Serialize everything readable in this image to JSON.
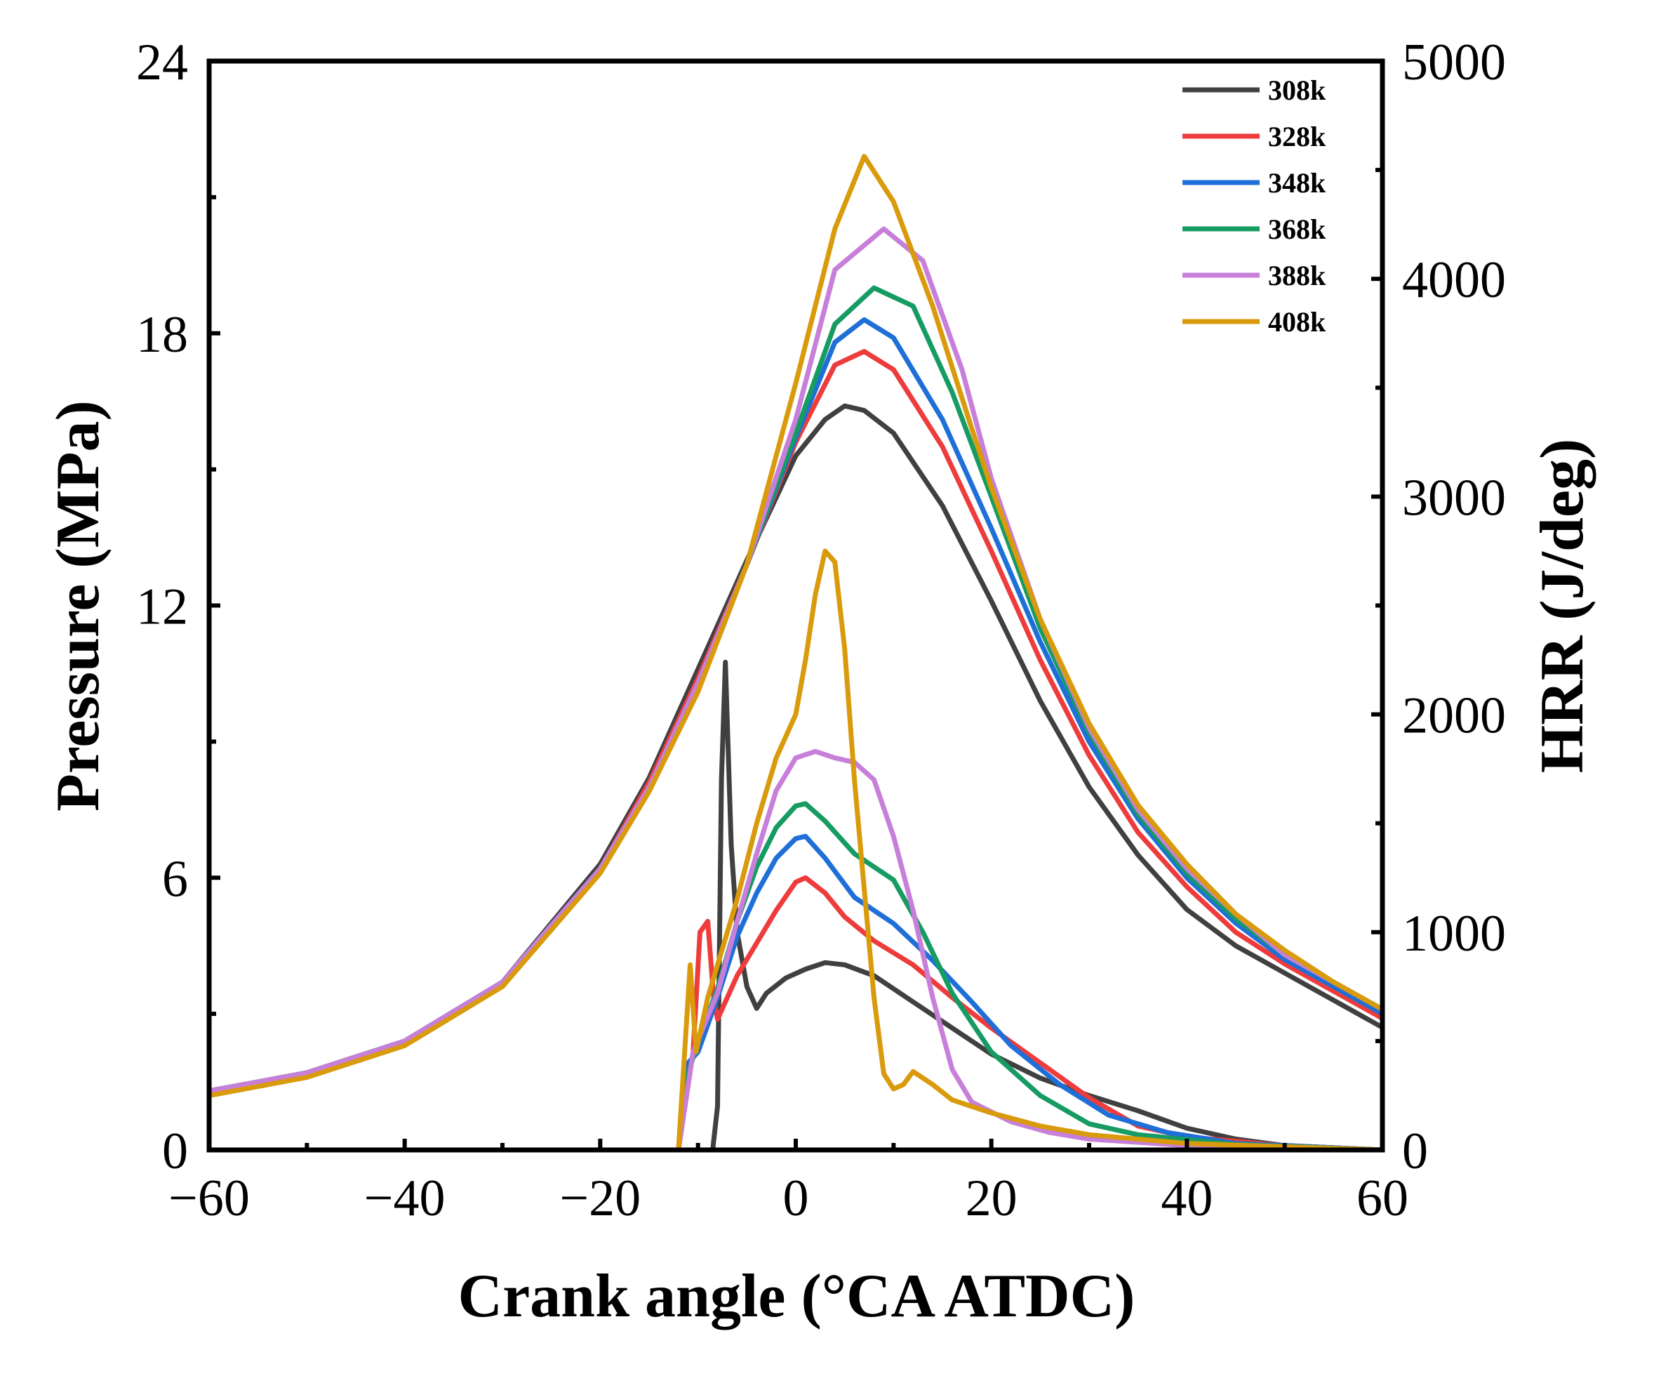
{
  "chart_data": {
    "type": "line",
    "title": "",
    "xlabel": "Crank angle (°CA ATDC)",
    "ylabel_left": "Pressure (MPa)",
    "ylabel_right": "HRR (J/deg)",
    "xlim": [
      -60,
      60
    ],
    "ylim_left": [
      0,
      24
    ],
    "ylim_right": [
      0,
      5000
    ],
    "x_ticks": [
      -60,
      -40,
      -20,
      0,
      20,
      40,
      60
    ],
    "x_tick_labels": [
      "−60",
      "−40",
      "−20",
      "0",
      "20",
      "40",
      "60"
    ],
    "y_left_ticks": [
      0,
      6,
      12,
      18,
      24
    ],
    "y_left_tick_labels": [
      "0",
      "6",
      "12",
      "18",
      "24"
    ],
    "y_right_ticks": [
      0,
      1000,
      2000,
      3000,
      4000,
      5000
    ],
    "y_right_tick_labels": [
      "0",
      "1000",
      "2000",
      "3000",
      "4000",
      "5000"
    ],
    "grid": false,
    "legend_position": "top-right",
    "series": [
      {
        "name": "308k",
        "color": "#404040",
        "pressure": [
          [
            -60,
            1.3
          ],
          [
            -50,
            1.7
          ],
          [
            -40,
            2.4
          ],
          [
            -30,
            3.7
          ],
          [
            -20,
            6.3
          ],
          [
            -15,
            8.2
          ],
          [
            -10,
            10.6
          ],
          [
            -5,
            13.0
          ],
          [
            0,
            15.3
          ],
          [
            3,
            16.1
          ],
          [
            5,
            16.4
          ],
          [
            7,
            16.3
          ],
          [
            10,
            15.8
          ],
          [
            15,
            14.2
          ],
          [
            20,
            12.1
          ],
          [
            25,
            9.9
          ],
          [
            30,
            8.0
          ],
          [
            35,
            6.5
          ],
          [
            40,
            5.3
          ],
          [
            45,
            4.5
          ],
          [
            50,
            3.9
          ],
          [
            55,
            3.3
          ],
          [
            60,
            2.7
          ]
        ],
        "hrr": [
          [
            -12,
            0
          ],
          [
            -8.5,
            0
          ],
          [
            -8,
            200
          ],
          [
            -7.6,
            1700
          ],
          [
            -7.2,
            2240
          ],
          [
            -6.6,
            1400
          ],
          [
            -6,
            1000
          ],
          [
            -5,
            750
          ],
          [
            -4,
            650
          ],
          [
            -3,
            720
          ],
          [
            -1,
            790
          ],
          [
            1,
            830
          ],
          [
            3,
            860
          ],
          [
            5,
            850
          ],
          [
            8,
            800
          ],
          [
            12,
            680
          ],
          [
            16,
            560
          ],
          [
            20,
            440
          ],
          [
            25,
            330
          ],
          [
            30,
            250
          ],
          [
            35,
            180
          ],
          [
            40,
            100
          ],
          [
            45,
            50
          ],
          [
            50,
            20
          ],
          [
            60,
            0
          ]
        ]
      },
      {
        "name": "328k",
        "color": "#ee3b3b",
        "pressure": [
          [
            -60,
            1.3
          ],
          [
            -50,
            1.7
          ],
          [
            -40,
            2.4
          ],
          [
            -30,
            3.7
          ],
          [
            -20,
            6.2
          ],
          [
            -15,
            8.1
          ],
          [
            -10,
            10.4
          ],
          [
            -5,
            12.9
          ],
          [
            0,
            15.6
          ],
          [
            4,
            17.3
          ],
          [
            7,
            17.6
          ],
          [
            10,
            17.2
          ],
          [
            15,
            15.5
          ],
          [
            20,
            13.2
          ],
          [
            25,
            10.8
          ],
          [
            30,
            8.7
          ],
          [
            35,
            7.0
          ],
          [
            40,
            5.8
          ],
          [
            45,
            4.8
          ],
          [
            50,
            4.1
          ],
          [
            55,
            3.5
          ],
          [
            60,
            2.9
          ]
        ],
        "hrr": [
          [
            -12,
            0
          ],
          [
            -10.5,
            450
          ],
          [
            -9.8,
            1000
          ],
          [
            -9,
            1050
          ],
          [
            -8.4,
            700
          ],
          [
            -8,
            600
          ],
          [
            -6,
            800
          ],
          [
            -4,
            950
          ],
          [
            -2,
            1100
          ],
          [
            0,
            1230
          ],
          [
            1,
            1250
          ],
          [
            3,
            1180
          ],
          [
            5,
            1070
          ],
          [
            8,
            960
          ],
          [
            12,
            850
          ],
          [
            16,
            700
          ],
          [
            20,
            560
          ],
          [
            25,
            400
          ],
          [
            30,
            240
          ],
          [
            35,
            110
          ],
          [
            40,
            60
          ],
          [
            50,
            20
          ],
          [
            60,
            0
          ]
        ]
      },
      {
        "name": "348k",
        "color": "#1f6fd8",
        "pressure": [
          [
            -60,
            1.3
          ],
          [
            -50,
            1.7
          ],
          [
            -40,
            2.4
          ],
          [
            -30,
            3.7
          ],
          [
            -20,
            6.2
          ],
          [
            -15,
            8.0
          ],
          [
            -10,
            10.3
          ],
          [
            -5,
            12.9
          ],
          [
            0,
            15.7
          ],
          [
            4,
            17.8
          ],
          [
            7,
            18.3
          ],
          [
            10,
            17.9
          ],
          [
            15,
            16.1
          ],
          [
            20,
            13.7
          ],
          [
            25,
            11.2
          ],
          [
            30,
            9.0
          ],
          [
            35,
            7.3
          ],
          [
            40,
            6.0
          ],
          [
            45,
            5.0
          ],
          [
            50,
            4.2
          ],
          [
            55,
            3.6
          ],
          [
            60,
            3.0
          ]
        ],
        "hrr": [
          [
            -12,
            0
          ],
          [
            -11,
            400
          ],
          [
            -10,
            450
          ],
          [
            -8,
            700
          ],
          [
            -6,
            980
          ],
          [
            -4,
            1180
          ],
          [
            -2,
            1340
          ],
          [
            0,
            1430
          ],
          [
            1,
            1440
          ],
          [
            3,
            1340
          ],
          [
            6,
            1160
          ],
          [
            10,
            1040
          ],
          [
            14,
            870
          ],
          [
            18,
            680
          ],
          [
            22,
            480
          ],
          [
            27,
            300
          ],
          [
            32,
            160
          ],
          [
            38,
            80
          ],
          [
            45,
            30
          ],
          [
            60,
            0
          ]
        ]
      },
      {
        "name": "368k",
        "color": "#169b62",
        "pressure": [
          [
            -60,
            1.3
          ],
          [
            -50,
            1.7
          ],
          [
            -40,
            2.4
          ],
          [
            -30,
            3.7
          ],
          [
            -20,
            6.2
          ],
          [
            -15,
            8.0
          ],
          [
            -10,
            10.3
          ],
          [
            -5,
            12.9
          ],
          [
            0,
            15.8
          ],
          [
            4,
            18.2
          ],
          [
            8,
            19.0
          ],
          [
            12,
            18.6
          ],
          [
            16,
            16.7
          ],
          [
            20,
            14.4
          ],
          [
            25,
            11.5
          ],
          [
            30,
            9.2
          ],
          [
            35,
            7.4
          ],
          [
            40,
            6.1
          ],
          [
            45,
            5.1
          ],
          [
            50,
            4.3
          ],
          [
            55,
            3.7
          ],
          [
            60,
            3.1
          ]
        ],
        "hrr": [
          [
            -12,
            0
          ],
          [
            -11,
            350
          ],
          [
            -10,
            500
          ],
          [
            -8,
            740
          ],
          [
            -6,
            1050
          ],
          [
            -4,
            1300
          ],
          [
            -2,
            1480
          ],
          [
            0,
            1580
          ],
          [
            1,
            1590
          ],
          [
            3,
            1510
          ],
          [
            6,
            1360
          ],
          [
            10,
            1240
          ],
          [
            13,
            1000
          ],
          [
            16,
            720
          ],
          [
            20,
            450
          ],
          [
            25,
            250
          ],
          [
            30,
            120
          ],
          [
            35,
            70
          ],
          [
            45,
            25
          ],
          [
            60,
            0
          ]
        ]
      },
      {
        "name": "388k",
        "color": "#c77fd9",
        "pressure": [
          [
            -60,
            1.3
          ],
          [
            -50,
            1.7
          ],
          [
            -40,
            2.4
          ],
          [
            -30,
            3.7
          ],
          [
            -20,
            6.2
          ],
          [
            -15,
            8.0
          ],
          [
            -10,
            10.3
          ],
          [
            -5,
            12.9
          ],
          [
            0,
            16.1
          ],
          [
            4,
            19.4
          ],
          [
            9,
            20.3
          ],
          [
            13,
            19.6
          ],
          [
            17,
            17.2
          ],
          [
            20,
            14.8
          ],
          [
            25,
            11.7
          ],
          [
            30,
            9.3
          ],
          [
            35,
            7.5
          ],
          [
            40,
            6.2
          ],
          [
            45,
            5.2
          ],
          [
            50,
            4.3
          ],
          [
            55,
            3.7
          ],
          [
            60,
            3.1
          ]
        ],
        "hrr": [
          [
            -12,
            0
          ],
          [
            -10.5,
            450
          ],
          [
            -8,
            720
          ],
          [
            -6,
            1050
          ],
          [
            -4,
            1360
          ],
          [
            -2,
            1650
          ],
          [
            0,
            1800
          ],
          [
            2,
            1830
          ],
          [
            4,
            1800
          ],
          [
            6,
            1780
          ],
          [
            8,
            1700
          ],
          [
            10,
            1440
          ],
          [
            12,
            1100
          ],
          [
            14,
            700
          ],
          [
            16,
            370
          ],
          [
            18,
            220
          ],
          [
            22,
            130
          ],
          [
            26,
            80
          ],
          [
            30,
            50
          ],
          [
            40,
            20
          ],
          [
            60,
            0
          ]
        ]
      },
      {
        "name": "408k",
        "color": "#d99a0b",
        "pressure": [
          [
            -60,
            1.2
          ],
          [
            -50,
            1.6
          ],
          [
            -40,
            2.3
          ],
          [
            -30,
            3.6
          ],
          [
            -20,
            6.1
          ],
          [
            -15,
            7.9
          ],
          [
            -10,
            10.1
          ],
          [
            -5,
            12.9
          ],
          [
            0,
            16.9
          ],
          [
            4,
            20.3
          ],
          [
            7,
            21.9
          ],
          [
            10,
            20.9
          ],
          [
            14,
            18.6
          ],
          [
            18,
            15.9
          ],
          [
            20,
            14.6
          ],
          [
            25,
            11.7
          ],
          [
            30,
            9.4
          ],
          [
            35,
            7.6
          ],
          [
            40,
            6.3
          ],
          [
            45,
            5.2
          ],
          [
            50,
            4.4
          ],
          [
            55,
            3.7
          ],
          [
            60,
            3.1
          ]
        ],
        "hrr": [
          [
            -12,
            0
          ],
          [
            -10.8,
            850
          ],
          [
            -10.2,
            450
          ],
          [
            -9,
            700
          ],
          [
            -6,
            1150
          ],
          [
            -4,
            1500
          ],
          [
            -2,
            1800
          ],
          [
            0,
            2000
          ],
          [
            1,
            2250
          ],
          [
            2,
            2550
          ],
          [
            3,
            2750
          ],
          [
            4,
            2700
          ],
          [
            5,
            2300
          ],
          [
            6,
            1700
          ],
          [
            7,
            1200
          ],
          [
            8,
            700
          ],
          [
            9,
            350
          ],
          [
            10,
            280
          ],
          [
            11,
            300
          ],
          [
            12,
            360
          ],
          [
            14,
            300
          ],
          [
            16,
            230
          ],
          [
            20,
            170
          ],
          [
            25,
            110
          ],
          [
            30,
            70
          ],
          [
            40,
            30
          ],
          [
            60,
            0
          ]
        ]
      }
    ]
  }
}
